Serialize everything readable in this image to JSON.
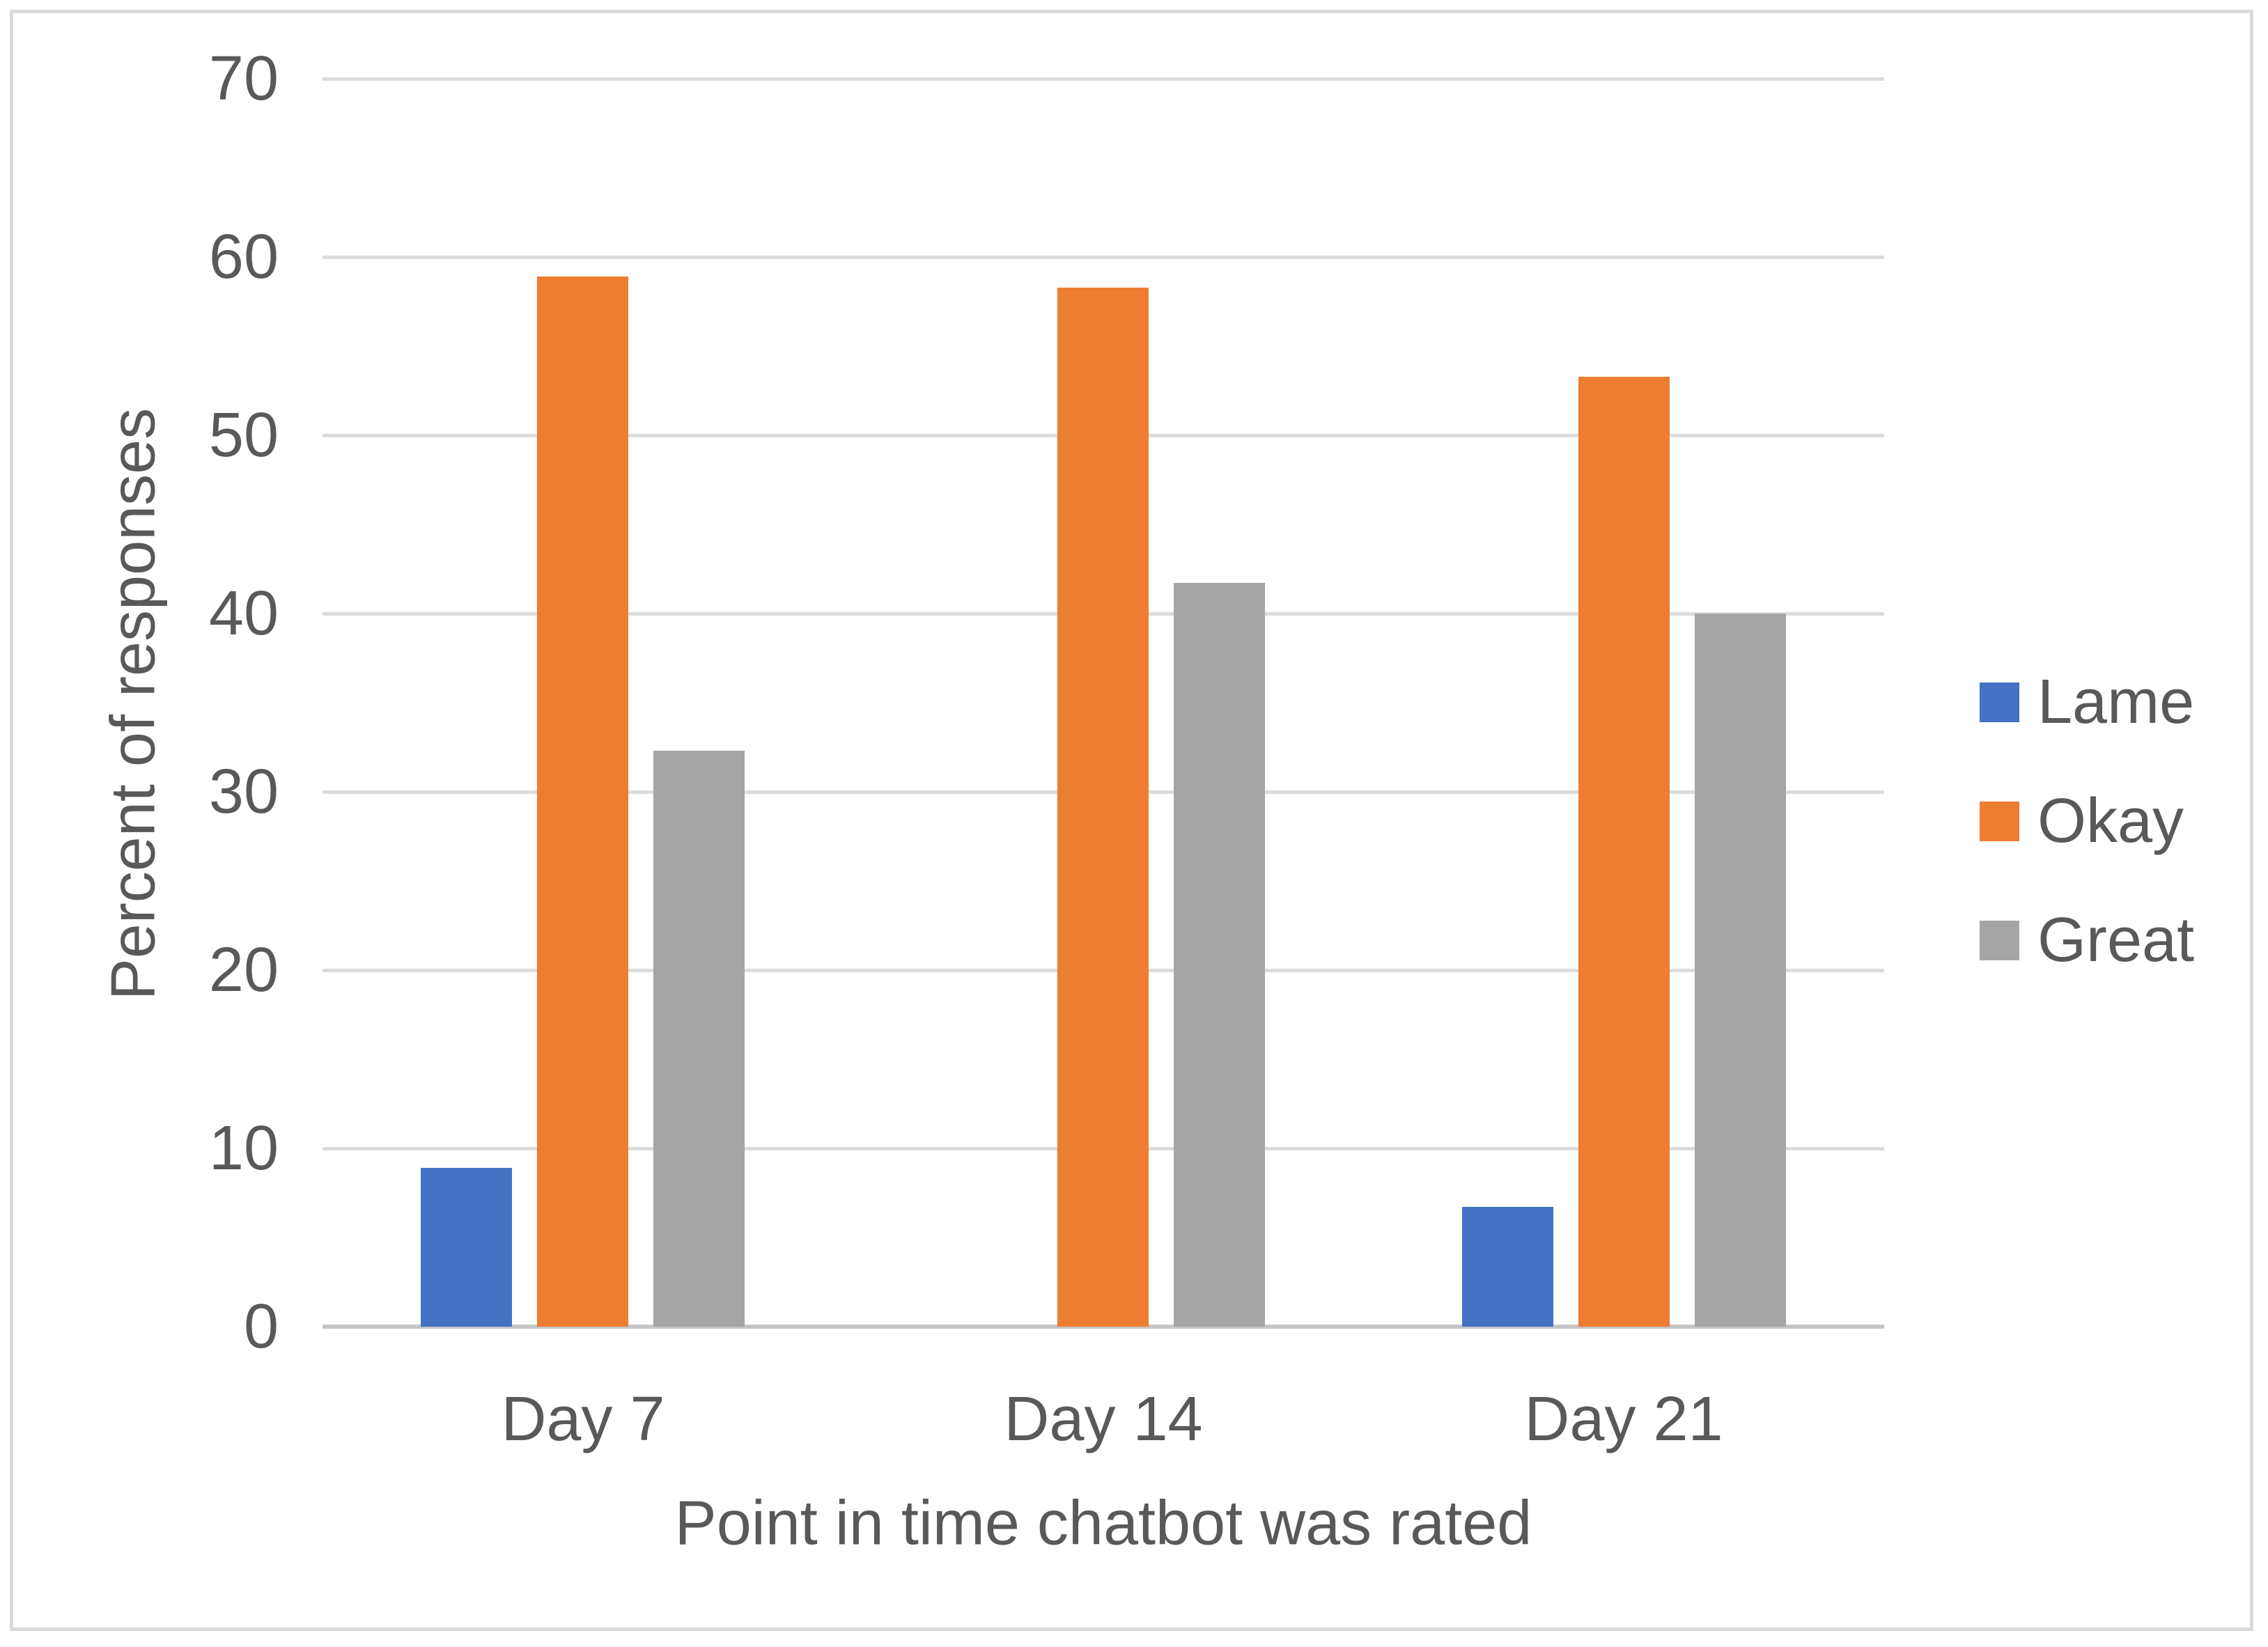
{
  "chart_data": {
    "type": "bar",
    "title": "",
    "categories": [
      "Day 7",
      "Day 14",
      "Day 21"
    ],
    "series": [
      {
        "name": "Lame",
        "color": "#4472C4",
        "values": [
          8.9,
          0,
          6.7
        ]
      },
      {
        "name": "Okay",
        "color": "#ED7D31",
        "values": [
          58.9,
          58.3,
          53.3
        ]
      },
      {
        "name": "Great",
        "color": "#A5A5A5",
        "values": [
          32.3,
          41.7,
          40
        ]
      }
    ],
    "xlabel": "Point in time chatbot was rated",
    "ylabel": "Percent of responses",
    "ylim": [
      0,
      70
    ],
    "yticks": [
      0,
      10,
      20,
      30,
      40,
      50,
      60,
      70
    ],
    "grid": true,
    "legend_position": "right"
  },
  "styles": {
    "text_color": "#595959",
    "gridline_color": "#DCDCDC",
    "axis_line_color": "#C6C6C6",
    "border_color": "#D9D9D9",
    "background_color": "#FFFFFF"
  }
}
